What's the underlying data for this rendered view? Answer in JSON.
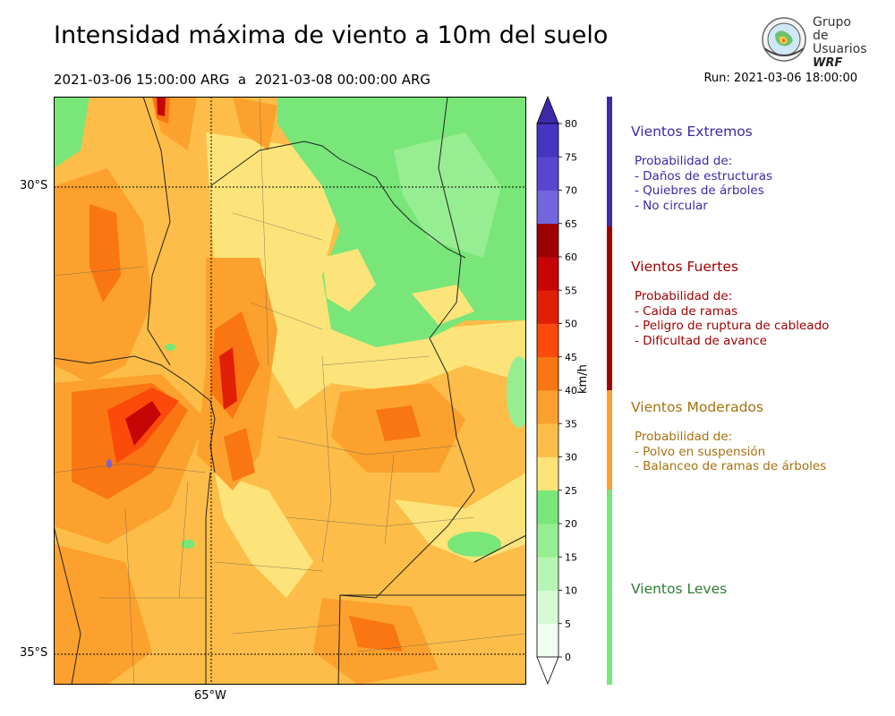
{
  "title": "Intensidad máxima de viento a 10m del suelo",
  "period": "2021-03-06 15:00:00 ARG  a  2021-03-08 00:00:00 ARG",
  "run": "Run: 2021-03-06 18:00:00",
  "logo": {
    "line1": "Grupo de",
    "line2": "Usuarios",
    "line3": "WRF",
    "icon": "globe-seal-icon"
  },
  "axes": {
    "lat_labels": [
      "30°S",
      "35°S"
    ],
    "lon_labels": [
      "65°W"
    ]
  },
  "colorbar": {
    "unit": "km/h",
    "ticks": [
      "0",
      "5",
      "10",
      "15",
      "20",
      "25",
      "30",
      "35",
      "40",
      "45",
      "50",
      "55",
      "60",
      "65",
      "70",
      "75",
      "80"
    ],
    "colors": [
      "#f0fff0",
      "#d5fad5",
      "#b7f5b2",
      "#97ee92",
      "#78e678",
      "#fde47a",
      "#fdbd48",
      "#fca12d",
      "#f97612",
      "#fc4a0a",
      "#e11f06",
      "#c60505",
      "#9d0000",
      "#7466dd",
      "#5946d0",
      "#4535c1"
    ],
    "extend_high": "#3c2aa8",
    "extend_low": "#ffffff"
  },
  "legend": [
    {
      "title": "Vientos Extremos",
      "color": "#3c2aa8",
      "lines": [
        "Probabilidad de:",
        "- Daños de estructuras",
        "- Quiebres de árboles",
        "- No circular"
      ]
    },
    {
      "title": "Vientos Fuertes",
      "color": "#a00000",
      "lines": [
        "Probabilidad de:",
        "- Caida de ramas",
        "- Peligro de ruptura de cableado",
        "- Dificultad de avance"
      ]
    },
    {
      "title": "Vientos Moderados",
      "color": "#fca12d",
      "text_color": "#a9700c",
      "lines": [
        "Probabilidad de:",
        "- Polvo en suspensión",
        "- Balanceo de ramas de árboles"
      ]
    },
    {
      "title": "Vientos Leves",
      "color": "#78e678",
      "text_color": "#2e7d32",
      "lines": []
    }
  ]
}
